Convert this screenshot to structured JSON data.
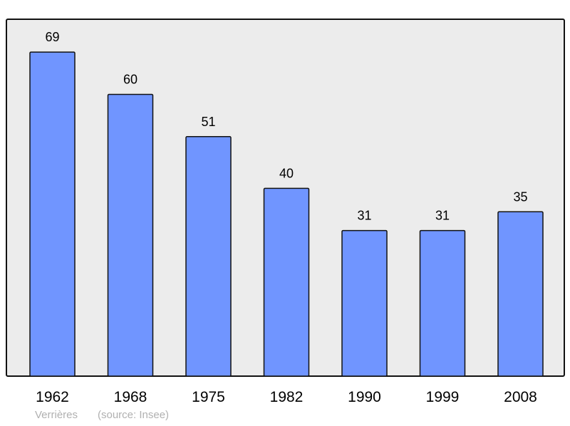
{
  "chart_data": {
    "type": "bar",
    "categories": [
      "1962",
      "1968",
      "1975",
      "1982",
      "1990",
      "1999",
      "2008"
    ],
    "values": [
      69,
      60,
      51,
      40,
      31,
      31,
      35
    ],
    "title": "",
    "xlabel": "",
    "ylabel": "",
    "ylim": [
      0,
      76
    ],
    "grid": false,
    "bar_color": "#7095ff",
    "background_color": "#ececec",
    "data_labels": true
  },
  "caption": {
    "place": "Verrières",
    "source": "(source: Insee)"
  }
}
